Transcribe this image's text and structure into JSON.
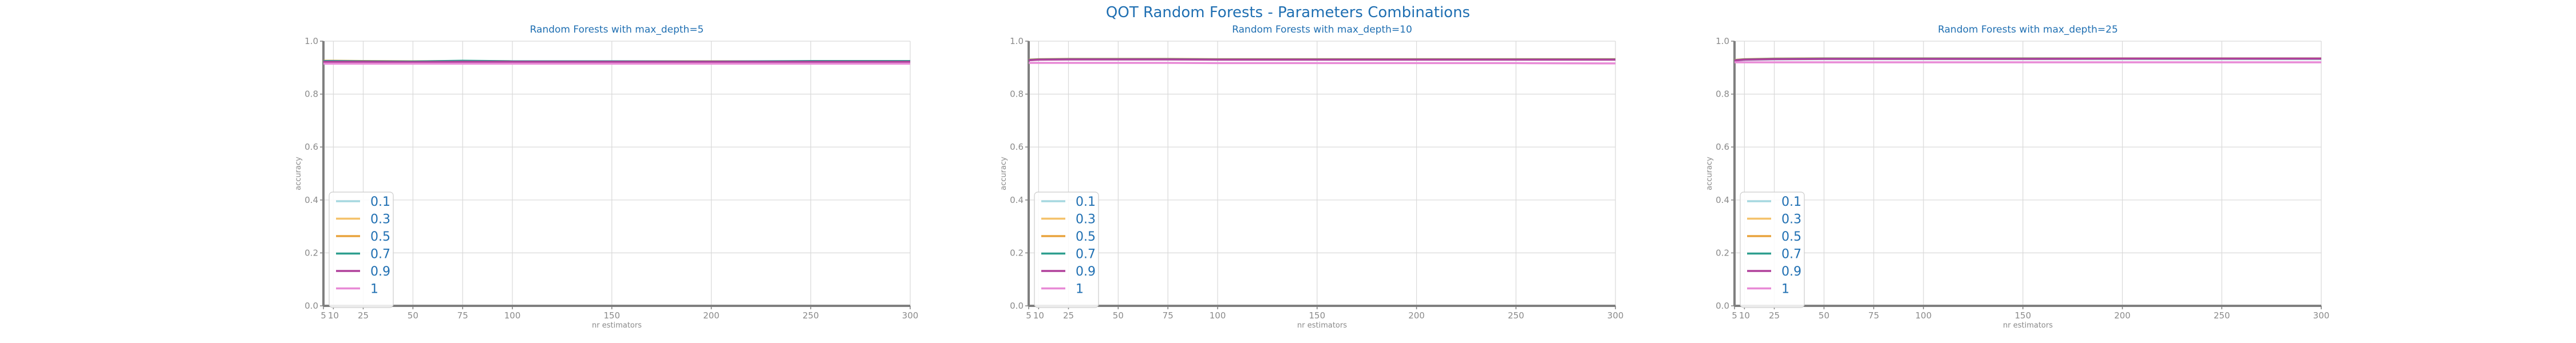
{
  "title": "QOT Random Forests - Parameters Combinations",
  "colors": {
    "title": "#1f6fb2",
    "grid": "#d9d9d9",
    "axis": "#7f7f7f",
    "tick_text": "#8a8a8a",
    "legend_text": "#1f6fb2"
  },
  "chart_data": [
    {
      "type": "line",
      "title": "Random Forests with max_depth=5",
      "xlabel": "nr estimators",
      "ylabel": "accuracy",
      "x": [
        5,
        10,
        25,
        50,
        75,
        100,
        150,
        200,
        250,
        300
      ],
      "xlim": [
        5,
        300
      ],
      "ylim": [
        0.0,
        1.0
      ],
      "yticks": [
        "0.0",
        "0.2",
        "0.4",
        "0.6",
        "0.8",
        "1.0"
      ],
      "grid": true,
      "legend_position": "lower-left",
      "series": [
        {
          "name": "0.1",
          "color": "#a6d8e0",
          "values": [
            0.924,
            0.924,
            0.923,
            0.922,
            0.923,
            0.922,
            0.922,
            0.922,
            0.922,
            0.922
          ]
        },
        {
          "name": "0.3",
          "color": "#f5c26b",
          "values": [
            0.925,
            0.925,
            0.924,
            0.923,
            0.924,
            0.923,
            0.923,
            0.923,
            0.923,
            0.923
          ]
        },
        {
          "name": "0.5",
          "color": "#e8a33c",
          "values": [
            0.926,
            0.926,
            0.925,
            0.924,
            0.925,
            0.924,
            0.924,
            0.924,
            0.924,
            0.924
          ]
        },
        {
          "name": "0.7",
          "color": "#2e9e8f",
          "values": [
            0.925,
            0.925,
            0.924,
            0.923,
            0.926,
            0.924,
            0.924,
            0.923,
            0.925,
            0.925
          ]
        },
        {
          "name": "0.9",
          "color": "#b0409b",
          "values": [
            0.922,
            0.922,
            0.922,
            0.921,
            0.922,
            0.922,
            0.922,
            0.922,
            0.922,
            0.922
          ]
        },
        {
          "name": "1",
          "color": "#e88ad6",
          "values": [
            0.915,
            0.915,
            0.915,
            0.915,
            0.915,
            0.915,
            0.915,
            0.915,
            0.915,
            0.915
          ]
        }
      ]
    },
    {
      "type": "line",
      "title": "Random Forests with max_depth=10",
      "xlabel": "nr estimators",
      "ylabel": "accuracy",
      "x": [
        5,
        10,
        25,
        50,
        75,
        100,
        150,
        200,
        250,
        300
      ],
      "xlim": [
        5,
        300
      ],
      "ylim": [
        0.0,
        1.0
      ],
      "yticks": [
        "0.0",
        "0.2",
        "0.4",
        "0.6",
        "0.8",
        "1.0"
      ],
      "grid": true,
      "legend_position": "lower-left",
      "series": [
        {
          "name": "0.1",
          "color": "#a6d8e0",
          "values": [
            0.928,
            0.93,
            0.931,
            0.931,
            0.931,
            0.93,
            0.93,
            0.93,
            0.93,
            0.93
          ]
        },
        {
          "name": "0.3",
          "color": "#f5c26b",
          "values": [
            0.929,
            0.931,
            0.932,
            0.932,
            0.932,
            0.931,
            0.931,
            0.931,
            0.931,
            0.931
          ]
        },
        {
          "name": "0.5",
          "color": "#e8a33c",
          "values": [
            0.93,
            0.932,
            0.933,
            0.933,
            0.933,
            0.932,
            0.932,
            0.932,
            0.932,
            0.932
          ]
        },
        {
          "name": "0.7",
          "color": "#2e9e8f",
          "values": [
            0.929,
            0.931,
            0.932,
            0.932,
            0.932,
            0.931,
            0.931,
            0.931,
            0.931,
            0.931
          ]
        },
        {
          "name": "0.9",
          "color": "#b0409b",
          "values": [
            0.928,
            0.93,
            0.931,
            0.931,
            0.931,
            0.93,
            0.93,
            0.93,
            0.93,
            0.93
          ]
        },
        {
          "name": "1",
          "color": "#e88ad6",
          "values": [
            0.918,
            0.918,
            0.918,
            0.918,
            0.918,
            0.917,
            0.917,
            0.917,
            0.917,
            0.916
          ]
        }
      ]
    },
    {
      "type": "line",
      "title": "Random Forests with max_depth=25",
      "xlabel": "nr estimators",
      "ylabel": "accuracy",
      "x": [
        5,
        10,
        25,
        50,
        75,
        100,
        150,
        200,
        250,
        300
      ],
      "xlim": [
        5,
        300
      ],
      "ylim": [
        0.0,
        1.0
      ],
      "yticks": [
        "0.0",
        "0.2",
        "0.4",
        "0.6",
        "0.8",
        "1.0"
      ],
      "grid": true,
      "legend_position": "lower-left",
      "series": [
        {
          "name": "0.1",
          "color": "#a6d8e0",
          "values": [
            0.926,
            0.929,
            0.931,
            0.932,
            0.932,
            0.932,
            0.932,
            0.932,
            0.932,
            0.932
          ]
        },
        {
          "name": "0.3",
          "color": "#f5c26b",
          "values": [
            0.928,
            0.931,
            0.933,
            0.934,
            0.934,
            0.934,
            0.934,
            0.934,
            0.934,
            0.934
          ]
        },
        {
          "name": "0.5",
          "color": "#e8a33c",
          "values": [
            0.929,
            0.932,
            0.934,
            0.935,
            0.935,
            0.935,
            0.935,
            0.935,
            0.935,
            0.935
          ]
        },
        {
          "name": "0.7",
          "color": "#2e9e8f",
          "values": [
            0.928,
            0.931,
            0.933,
            0.934,
            0.934,
            0.934,
            0.934,
            0.934,
            0.934,
            0.934
          ]
        },
        {
          "name": "0.9",
          "color": "#b0409b",
          "values": [
            0.927,
            0.93,
            0.932,
            0.933,
            0.933,
            0.933,
            0.933,
            0.934,
            0.934,
            0.934
          ]
        },
        {
          "name": "1",
          "color": "#e88ad6",
          "values": [
            0.92,
            0.92,
            0.92,
            0.92,
            0.92,
            0.92,
            0.92,
            0.92,
            0.92,
            0.92
          ]
        }
      ]
    }
  ]
}
